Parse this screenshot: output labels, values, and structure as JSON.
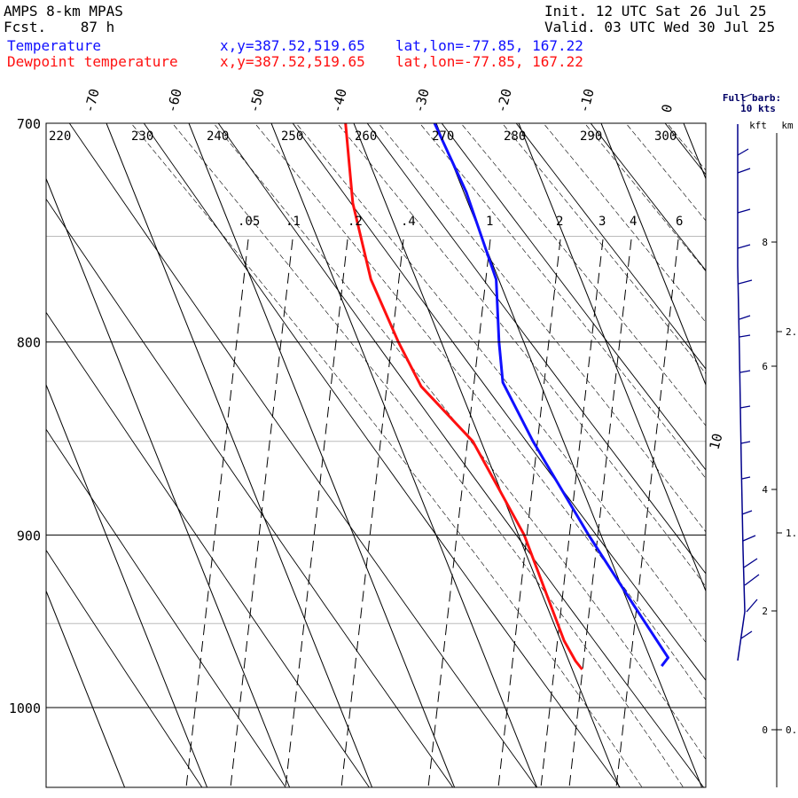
{
  "header": {
    "model": "AMPS 8-km MPAS",
    "fcst_label": "Fcst.",
    "fcst_value": "87 h",
    "init": "Init. 12 UTC Sat 26 Jul 25",
    "valid": "Valid. 03 UTC Wed 30 Jul 25",
    "temp_label": "Temperature",
    "dew_label": "Dewpoint temperature",
    "xy": "x,y=387.52,519.65",
    "latlon": "lat,lon=-77.85, 167.22"
  },
  "colors": {
    "temperature": "#1010ff",
    "dewpoint": "#ff1010"
  },
  "chart_data": {
    "type": "line",
    "pressure_ticks": [
      "700",
      "800",
      "900",
      "1000"
    ],
    "isotherm_labels": [
      "-70",
      "-60",
      "-50",
      "-40",
      "-30",
      "-20",
      "-10",
      "0"
    ],
    "theta_labels": [
      "220",
      "230",
      "240",
      "250",
      "260",
      "270",
      "280",
      "290",
      "300"
    ],
    "mixing_ratio_labels": [
      ".05",
      ".1",
      ".2",
      ".4",
      "1",
      "2",
      "3",
      "4",
      "6"
    ],
    "extra_isotherm_label": "10",
    "series": [
      {
        "name": "Temperature",
        "points": [
          [
            700,
            -30.2
          ],
          [
            730,
            -29.7
          ],
          [
            770,
            -30.3
          ],
          [
            800,
            -33.0
          ],
          [
            820,
            -34.5
          ],
          [
            850,
            -33.7
          ],
          [
            900,
            -31.5
          ],
          [
            940,
            -29.4
          ],
          [
            970,
            -27.8
          ],
          [
            975,
            -29.0
          ]
        ]
      },
      {
        "name": "Dewpoint temperature",
        "points": [
          [
            700,
            -41.0
          ],
          [
            735,
            -44.0
          ],
          [
            770,
            -45.5
          ],
          [
            800,
            -45.2
          ],
          [
            822,
            -44.6
          ],
          [
            850,
            -41.0
          ],
          [
            900,
            -39.3
          ],
          [
            960,
            -39.6
          ],
          [
            972,
            -39.2
          ],
          [
            977,
            -38.8
          ]
        ]
      }
    ],
    "wind_label": "Full barb:",
    "wind_units": "10 kts",
    "height_units_left": "kft",
    "height_units_right": "km",
    "kft_ticks": [
      "8",
      "6",
      "4",
      "2",
      "0"
    ],
    "km_ticks": [
      "2.",
      "1.",
      "0."
    ],
    "grid": true
  }
}
